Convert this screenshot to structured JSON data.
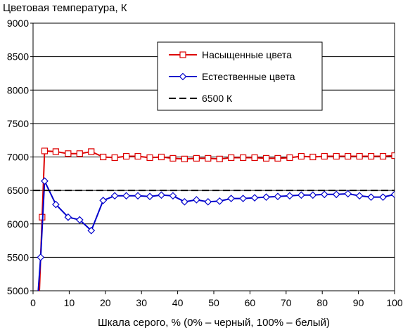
{
  "chart_data": {
    "type": "line",
    "ylabel": "Цветовая температура, К",
    "xlabel": "Шкала серого, % (0% – черный, 100% – белый)",
    "xlim": [
      0,
      100
    ],
    "ylim": [
      5000,
      9000
    ],
    "xticks": [
      0,
      10,
      20,
      30,
      40,
      50,
      60,
      70,
      80,
      90,
      100
    ],
    "yticks": [
      5000,
      5500,
      6000,
      6500,
      7000,
      7500,
      8000,
      8500,
      9000
    ],
    "grid": "horizontal",
    "legend_position": "top-right",
    "series": [
      {
        "name": "Насыщенные цвета",
        "color": "#dd0000",
        "marker": "square",
        "x": [
          1.7,
          2.5,
          3.2,
          6.3,
          9.7,
          12.9,
          16.1,
          19.4,
          22.6,
          25.8,
          29.0,
          32.3,
          35.5,
          38.7,
          41.9,
          45.2,
          48.4,
          51.6,
          54.8,
          58.1,
          61.3,
          64.5,
          67.7,
          71.0,
          74.2,
          77.4,
          80.6,
          83.9,
          87.1,
          90.3,
          93.5,
          96.8,
          100
        ],
        "values": [
          4900,
          6100,
          7090,
          7080,
          7050,
          7050,
          7080,
          7000,
          6990,
          7010,
          7010,
          6990,
          7000,
          6980,
          6970,
          6980,
          6980,
          6970,
          6990,
          6990,
          6990,
          6980,
          6980,
          6990,
          7010,
          7000,
          7010,
          7010,
          7010,
          7010,
          7010,
          7010,
          7020
        ]
      },
      {
        "name": "Естественные цвета",
        "color": "#0000cc",
        "marker": "diamond",
        "x": [
          1.3,
          2.1,
          3.2,
          6.3,
          9.7,
          12.9,
          16.1,
          19.4,
          22.6,
          25.8,
          29.0,
          32.3,
          35.5,
          38.7,
          41.9,
          45.2,
          48.4,
          51.6,
          54.8,
          58.1,
          61.3,
          64.5,
          67.7,
          71.0,
          74.2,
          77.4,
          80.6,
          83.9,
          87.1,
          90.3,
          93.5,
          96.8,
          100
        ],
        "values": [
          4900,
          5500,
          6640,
          6290,
          6100,
          6060,
          5900,
          6350,
          6420,
          6420,
          6420,
          6410,
          6430,
          6420,
          6330,
          6360,
          6330,
          6340,
          6380,
          6380,
          6390,
          6400,
          6410,
          6420,
          6430,
          6430,
          6440,
          6440,
          6450,
          6420,
          6400,
          6400,
          6440
        ]
      },
      {
        "name": "6500 К",
        "color": "#000000",
        "marker": "none",
        "dash": true,
        "x": [
          0,
          100
        ],
        "values": [
          6500,
          6500
        ]
      }
    ]
  }
}
